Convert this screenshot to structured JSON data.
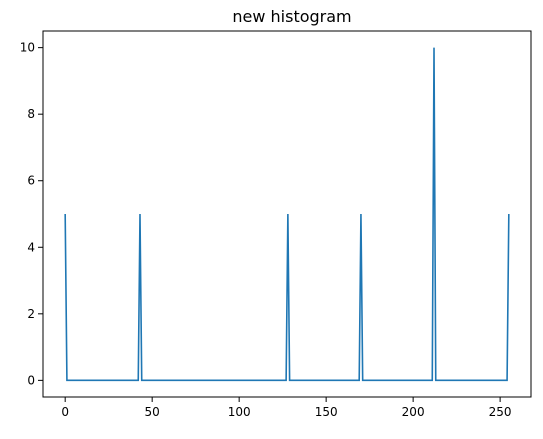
{
  "chart_data": {
    "type": "line",
    "title": "new histogram",
    "xlabel": "",
    "ylabel": "",
    "xlim": [
      -12.75,
      267.75
    ],
    "ylim": [
      -0.5,
      10.5
    ],
    "grid": false,
    "x_ticks": [
      0,
      50,
      100,
      150,
      200,
      250
    ],
    "x_tick_labels": [
      "0",
      "50",
      "100",
      "150",
      "200",
      "250"
    ],
    "y_ticks": [
      0,
      2,
      4,
      6,
      8,
      10
    ],
    "y_tick_labels": [
      "0",
      "2",
      "4",
      "6",
      "8",
      "10"
    ],
    "series": [
      {
        "color": "#1f77b4",
        "points": [
          [
            0,
            5
          ],
          [
            1,
            0
          ],
          [
            42,
            0
          ],
          [
            43,
            5
          ],
          [
            44,
            0
          ],
          [
            127,
            0
          ],
          [
            128,
            5
          ],
          [
            129,
            0
          ],
          [
            169,
            0
          ],
          [
            170,
            5
          ],
          [
            171,
            0
          ],
          [
            211,
            0
          ],
          [
            212,
            10
          ],
          [
            213,
            0
          ],
          [
            254,
            0
          ],
          [
            255,
            5
          ]
        ]
      }
    ]
  }
}
